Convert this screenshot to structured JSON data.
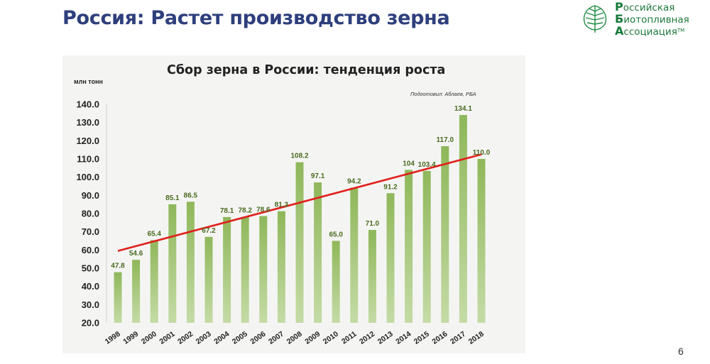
{
  "slide_title": "Россия: Растет производство зерна",
  "logo": {
    "lines": [
      {
        "cap": "Р",
        "rest": "оссийская"
      },
      {
        "cap": "Б",
        "rest": "иотопливная"
      },
      {
        "cap": "А",
        "rest": "ссоциация"
      }
    ],
    "tm": "TM"
  },
  "page_number": "6",
  "colors": {
    "title": "#2e3f7c",
    "bar": "#9cc06c",
    "trend": "#e0201c",
    "label": "#4a6a1e"
  },
  "chart_data": {
    "type": "bar",
    "title": "Сбор зерна в России: тенденция роста",
    "ylabel": "млн тонн",
    "source": "Подготовил: Аблаев, РБА",
    "categories": [
      "1998",
      "1999",
      "2000",
      "2001",
      "2002",
      "2003",
      "2004",
      "2005",
      "2006",
      "2007",
      "2008",
      "2009",
      "2010",
      "2011",
      "2012",
      "2013",
      "2014",
      "2015",
      "2016",
      "2017",
      "2018"
    ],
    "values": [
      47.8,
      54.6,
      65.4,
      85.1,
      86.5,
      67.2,
      78.1,
      78.2,
      78.6,
      81.3,
      108.2,
      97.1,
      65.0,
      94.2,
      71.0,
      91.2,
      104,
      103.4,
      117.0,
      134.1,
      110.0
    ],
    "data_labels": [
      "47.8",
      "54.6",
      "65.4",
      "85.1",
      "86.5",
      "67.2",
      "78.1",
      "78.2",
      "78.6",
      "81.3",
      "108.2",
      "97.1",
      "65.0",
      "94.2",
      "71.0",
      "91.2",
      "104",
      "103.4",
      "117.0",
      "134.1",
      "110.0"
    ],
    "ylim": [
      20,
      140
    ],
    "yticks": [
      "20.0",
      "30.0",
      "40.0",
      "50.0",
      "60.0",
      "70.0",
      "80.0",
      "90.0",
      "100.0",
      "110.0",
      "120.0",
      "130.0",
      "140.0"
    ],
    "trendline": {
      "start": 59.5,
      "end": 112.5
    },
    "grid": false,
    "legend": "none"
  }
}
